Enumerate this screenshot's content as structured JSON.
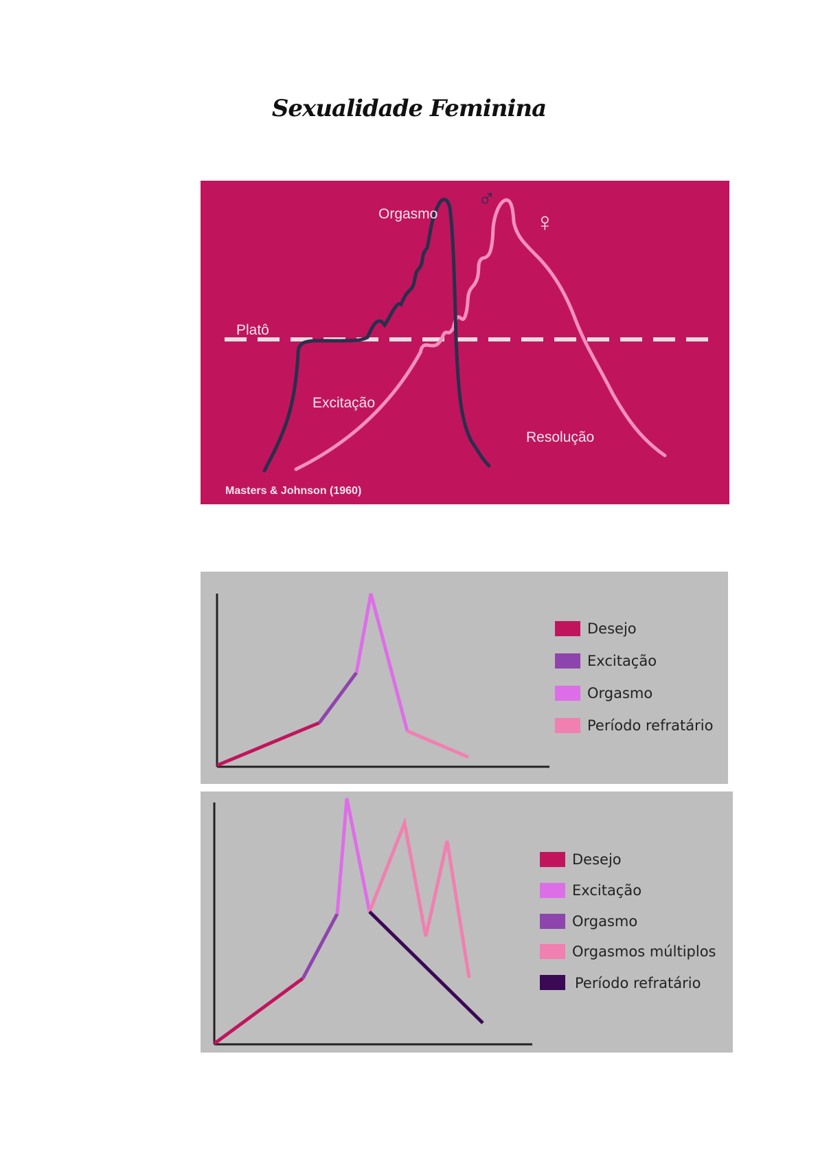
{
  "page": {
    "title": "Sexualidade Feminina"
  },
  "masters_johnson": {
    "labels": {
      "plateau": "Platô",
      "orgasm": "Orgasmo",
      "excitement": "Excitação",
      "resolution": "Resolução",
      "male_symbol": "♂",
      "female_symbol": "♀"
    },
    "caption": "Masters & Johnson (1960)",
    "colors": {
      "background": "#c0155d",
      "male_curve": "#2a2f4c",
      "female_curve": "#f590bf",
      "plateau_line": "#e8dde2"
    }
  },
  "male_cycle": {
    "legend": [
      {
        "label": "Desejo",
        "color": "#c0155d"
      },
      {
        "label": "Excitação",
        "color": "#8e44ad"
      },
      {
        "label": "Orgasmo",
        "color": "#dd6ee8"
      },
      {
        "label": "Período refratário",
        "color": "#f080b0"
      }
    ]
  },
  "female_cycle": {
    "legend": [
      {
        "label": "Desejo",
        "color": "#c0155d"
      },
      {
        "label": "Excitação",
        "color": "#dd6ee8"
      },
      {
        "label": "Orgasmo",
        "color": "#8e44ad"
      },
      {
        "label": "Orgasmos múltiplos",
        "color": "#f080b0"
      },
      {
        "label": "Período refratário",
        "color": "#3a0a55"
      }
    ]
  }
}
